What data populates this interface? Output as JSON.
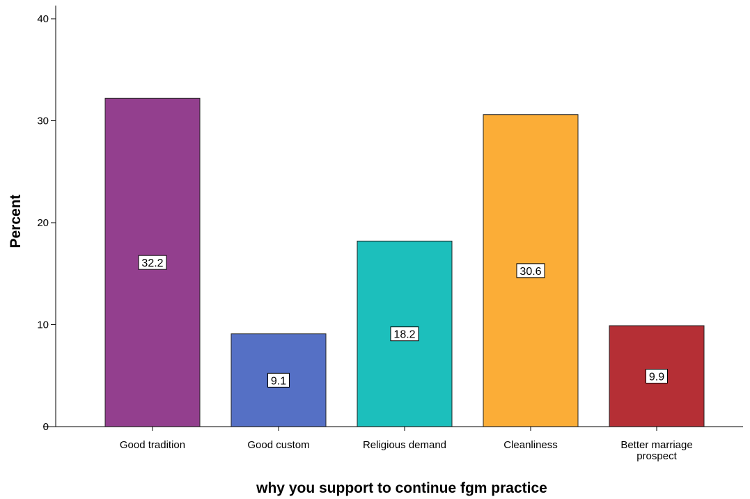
{
  "chart_data": {
    "type": "bar",
    "title": "",
    "xlabel": "why you support to continue fgm practice",
    "ylabel": "Percent",
    "ylim": [
      0,
      40
    ],
    "yticks": [
      0,
      10,
      20,
      30,
      40
    ],
    "grid": false,
    "legend": "none",
    "categories": [
      [
        "Good tradition"
      ],
      [
        "Good custom"
      ],
      [
        "Religious demand"
      ],
      [
        "Cleanliness"
      ],
      [
        "Better marriage",
        "prospect"
      ]
    ],
    "values": [
      32.2,
      9.1,
      18.2,
      30.6,
      9.9
    ],
    "data_labels": [
      "32.2",
      "9.1",
      "18.2",
      "30.6",
      "9.9"
    ],
    "colors": [
      "#933f8e",
      "#5570c5",
      "#1cbfbc",
      "#fbad37",
      "#b52f35"
    ]
  }
}
